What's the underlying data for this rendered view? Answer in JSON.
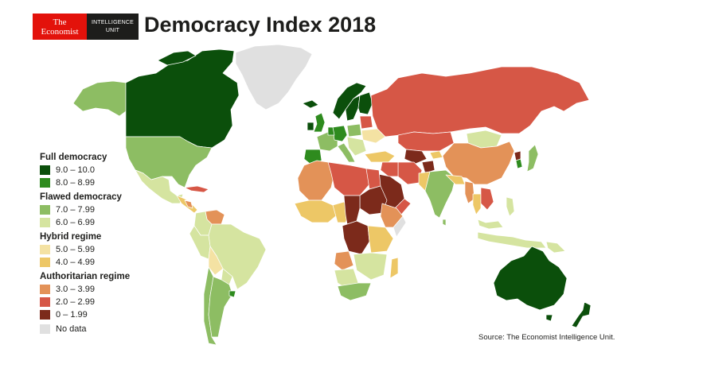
{
  "logo": {
    "line1": "The",
    "line2": "Economist",
    "unit1": "INTELLIGENCE",
    "unit2": "UNIT"
  },
  "title": "Democracy Index 2018",
  "legend": {
    "groups": [
      {
        "title": "Full democracy",
        "items": [
          {
            "label": "9.0 – 10.0",
            "color": "#0b4f0b"
          },
          {
            "label": "8.0 – 8.99",
            "color": "#2e8b1e"
          }
        ]
      },
      {
        "title": "Flawed democracy",
        "items": [
          {
            "label": "7.0 – 7.99",
            "color": "#8dbd63"
          },
          {
            "label": "6.0 – 6.99",
            "color": "#d5e4a0"
          }
        ]
      },
      {
        "title": "Hybrid regime",
        "items": [
          {
            "label": "5.0 – 5.99",
            "color": "#f4e2a3"
          },
          {
            "label": "4.0 – 4.99",
            "color": "#edc766"
          }
        ]
      },
      {
        "title": "Authoritarian regime",
        "items": [
          {
            "label": "3.0 – 3.99",
            "color": "#e39258"
          },
          {
            "label": "2.0 – 2.99",
            "color": "#d65746"
          },
          {
            "label": "0 – 1.99",
            "color": "#7c2a1b"
          }
        ]
      }
    ],
    "no_data": {
      "label": "No data",
      "color": "#e0e0e0"
    }
  },
  "source": "Source: The Economist Intelligence Unit.",
  "colors": {
    "full_high": "#0b4f0b",
    "full_low": "#2e8b1e",
    "flawed_high": "#8dbd63",
    "flawed_low": "#d5e4a0",
    "hybrid_high": "#f4e2a3",
    "hybrid_low": "#edc766",
    "auth_high": "#e39258",
    "auth_mid": "#d65746",
    "auth_low": "#7c2a1b",
    "no_data": "#e0e0e0"
  }
}
